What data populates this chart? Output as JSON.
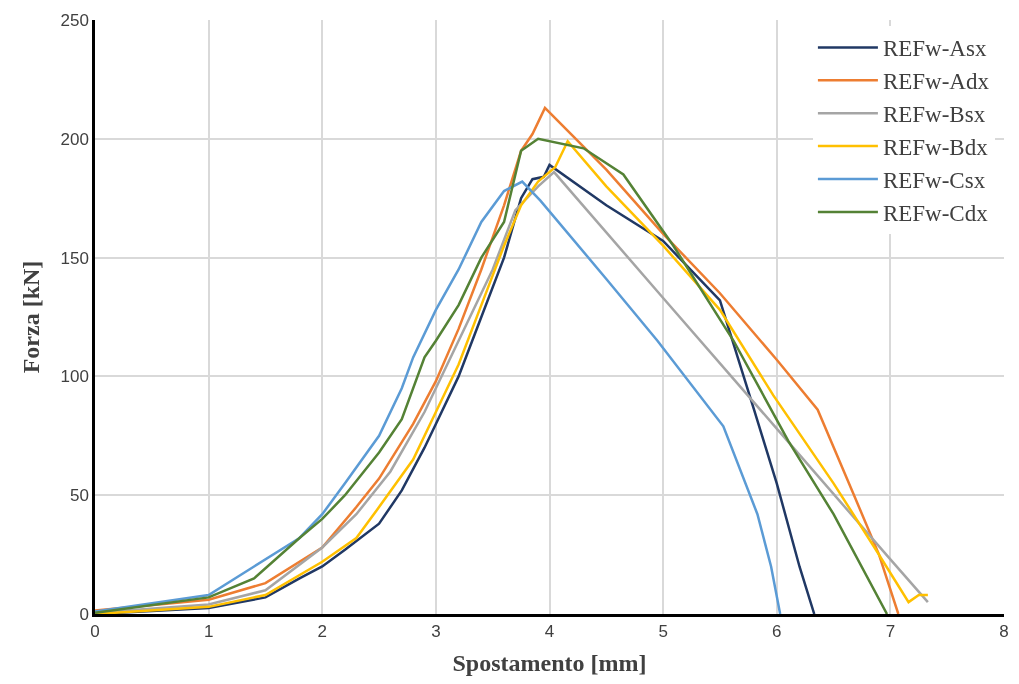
{
  "chart_data": {
    "type": "line",
    "xlabel": "Spostamento [mm]",
    "ylabel": "Forza [kN]",
    "xlim": [
      0,
      8
    ],
    "xticks": [
      0,
      1,
      2,
      3,
      4,
      5,
      6,
      7,
      8
    ],
    "ylim": [
      0,
      250
    ],
    "yticks": [
      0,
      50,
      100,
      150,
      200,
      250
    ],
    "grid": true,
    "legend": "top right",
    "marker": "none",
    "line_style": "solid",
    "series": [
      {
        "name": "REFw-Asx",
        "color": "#203864",
        "x": [
          0,
          1,
          1.5,
          1.8,
          2,
          2.2,
          2.5,
          2.7,
          2.9,
          3.0,
          3.2,
          3.4,
          3.6,
          3.75,
          3.85,
          3.95,
          4.0,
          4.5,
          5.0,
          5.5,
          5.8,
          6.0,
          6.2,
          6.33
        ],
        "values": [
          0,
          2.5,
          7,
          15,
          20,
          27,
          38,
          52,
          70,
          80,
          100,
          125,
          150,
          175,
          183,
          184,
          189,
          172,
          157,
          132,
          86,
          55,
          20,
          0
        ]
      },
      {
        "name": "REFw-Adx",
        "color": "#ed7d31",
        "x": [
          0,
          1,
          1.5,
          2,
          2.3,
          2.5,
          2.8,
          3.0,
          3.2,
          3.4,
          3.6,
          3.75,
          3.85,
          3.96,
          4.5,
          5.0,
          5.5,
          6.0,
          6.36,
          6.68,
          6.9,
          7.07
        ],
        "values": [
          1.5,
          6,
          13,
          28,
          45,
          57,
          80,
          98,
          120,
          145,
          172,
          195,
          202,
          213,
          187,
          160,
          135,
          107,
          86,
          50,
          25,
          0
        ]
      },
      {
        "name": "REFw-Bsx",
        "color": "#a5a5a5",
        "x": [
          0,
          1,
          1.5,
          2,
          2.3,
          2.6,
          2.9,
          3.2,
          3.5,
          3.7,
          3.9,
          4.04,
          5.0,
          6.0,
          7.0,
          7.33
        ],
        "values": [
          0.5,
          4,
          10,
          28,
          42,
          60,
          85,
          115,
          145,
          170,
          180,
          186,
          133,
          78,
          23,
          5
        ]
      },
      {
        "name": "REFw-Bdx",
        "color": "#ffc000",
        "x": [
          0,
          1,
          1.5,
          2,
          2.3,
          2.5,
          2.8,
          3.0,
          3.2,
          3.4,
          3.6,
          3.75,
          3.9,
          4.05,
          4.16,
          4.5,
          5.0,
          5.5,
          5.97,
          6.5,
          6.86,
          7.16,
          7.25,
          7.33
        ],
        "values": [
          0,
          3,
          8,
          22,
          32,
          45,
          65,
          85,
          105,
          130,
          155,
          172,
          182,
          188,
          199,
          180,
          155,
          128,
          92,
          55,
          28,
          5,
          8,
          8
        ]
      },
      {
        "name": "REFw-Csx",
        "color": "#5b9bd5",
        "x": [
          0,
          1,
          1.4,
          1.8,
          2,
          2.2,
          2.5,
          2.7,
          2.8,
          3.0,
          3.2,
          3.4,
          3.6,
          3.76,
          3.92,
          4.5,
          4.95,
          5.53,
          5.83,
          5.95,
          6.03
        ],
        "values": [
          1,
          8,
          20,
          32,
          42,
          55,
          75,
          95,
          108,
          128,
          145,
          165,
          178,
          182,
          174,
          141,
          115,
          79,
          42,
          20,
          0
        ]
      },
      {
        "name": "REFw-Cdx",
        "color": "#548235",
        "x": [
          0,
          1,
          1.4,
          1.8,
          2,
          2.2,
          2.5,
          2.7,
          2.9,
          3.0,
          3.2,
          3.4,
          3.6,
          3.75,
          3.9,
          4.3,
          4.65,
          5.09,
          5.62,
          6.1,
          6.5,
          6.97
        ],
        "values": [
          0.5,
          7,
          15,
          32,
          40,
          50,
          68,
          82,
          108,
          115,
          130,
          150,
          165,
          195,
          200,
          196,
          185,
          155,
          115,
          73,
          42,
          0
        ]
      }
    ]
  }
}
